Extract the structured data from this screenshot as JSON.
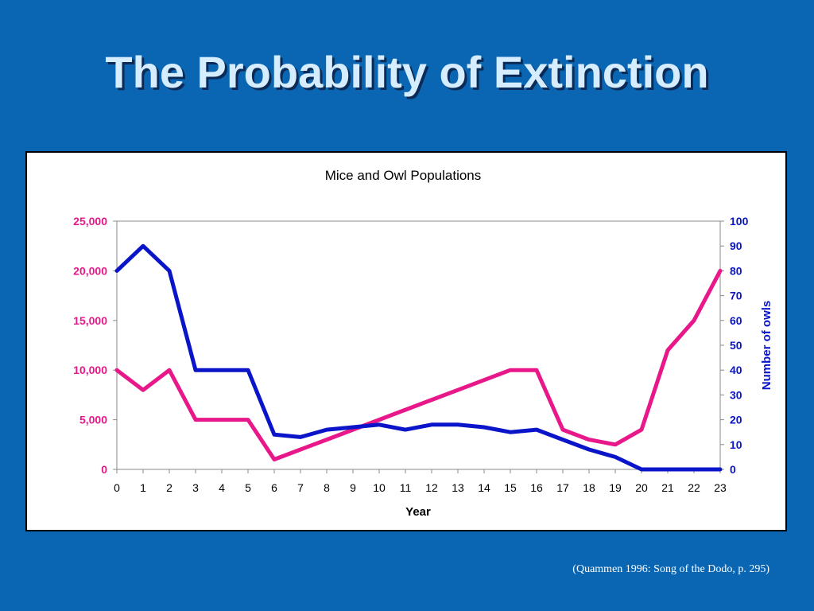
{
  "slide": {
    "title": "The Probability of Extinction",
    "citation": "(Quammen 1996: Song of the Dodo, p. 295)",
    "background_color": "#0a66b2"
  },
  "chart_data": {
    "type": "line",
    "title": "Mice and Owl Populations",
    "xlabel": "Year",
    "ylabel_left": "",
    "ylabel_right": "Number of owls",
    "x": [
      0,
      1,
      2,
      3,
      4,
      5,
      6,
      7,
      8,
      9,
      10,
      11,
      12,
      13,
      14,
      15,
      16,
      17,
      18,
      19,
      20,
      21,
      22,
      23
    ],
    "x_ticks": [
      "0",
      "1",
      "2",
      "3",
      "4",
      "5",
      "6",
      "7",
      "8",
      "9",
      "10",
      "11",
      "12",
      "13",
      "14",
      "15",
      "16",
      "17",
      "18",
      "19",
      "20",
      "21",
      "22",
      "23"
    ],
    "ylim_left": [
      0,
      25000
    ],
    "ylim_right": [
      0,
      100
    ],
    "left_ticks": [
      "0",
      "5,000",
      "10,000",
      "15,000",
      "20,000",
      "25,000"
    ],
    "right_ticks": [
      "0",
      "10",
      "20",
      "30",
      "40",
      "50",
      "60",
      "70",
      "80",
      "90",
      "100"
    ],
    "grid": false,
    "series": [
      {
        "axis": "left",
        "color": "#e8178a",
        "values": [
          10000,
          8000,
          10000,
          5000,
          5000,
          5000,
          1000,
          2000,
          3000,
          4000,
          5000,
          6000,
          7000,
          8000,
          9000,
          10000,
          10000,
          4000,
          3000,
          2500,
          4000,
          12000,
          15000,
          20000
        ]
      },
      {
        "axis": "right",
        "color": "#0a14c8",
        "values": [
          80,
          90,
          80,
          40,
          40,
          40,
          14,
          13,
          16,
          17,
          18,
          16,
          18,
          18,
          17,
          15,
          16,
          12,
          8,
          5,
          0,
          0,
          0,
          0
        ]
      }
    ]
  }
}
